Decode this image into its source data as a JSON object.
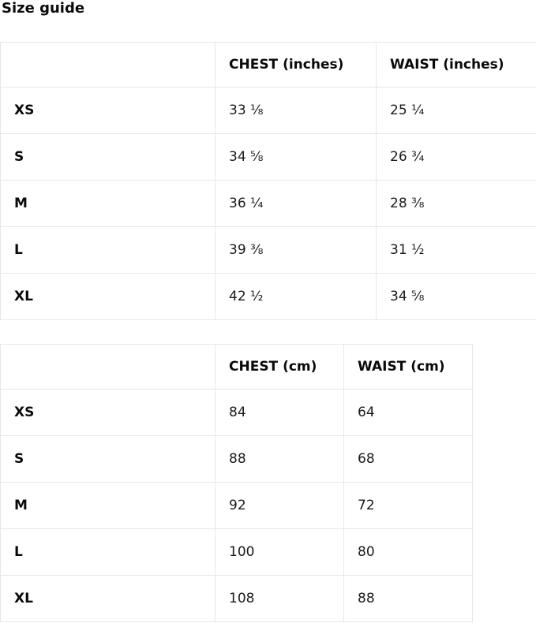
{
  "page": {
    "title": "Size guide"
  },
  "colors": {
    "border": "#e7e7e7",
    "text": "#111111",
    "background": "#ffffff"
  },
  "tables": [
    {
      "unit": "inches",
      "header": [
        "",
        "CHEST (inches)",
        "WAIST (inches)"
      ],
      "rows": [
        {
          "size": "XS",
          "chest": "33 ⅛",
          "waist": "25 ¼"
        },
        {
          "size": "S",
          "chest": "34 ⅝",
          "waist": "26 ¾"
        },
        {
          "size": "M",
          "chest": "36 ¼",
          "waist": "28 ⅜"
        },
        {
          "size": "L",
          "chest": "39 ⅜",
          "waist": "31 ½"
        },
        {
          "size": "XL",
          "chest": "42 ½",
          "waist": "34 ⅝"
        }
      ]
    },
    {
      "unit": "cm",
      "header": [
        "",
        "CHEST (cm)",
        "WAIST (cm)"
      ],
      "rows": [
        {
          "size": "XS",
          "chest": "84",
          "waist": "64"
        },
        {
          "size": "S",
          "chest": "88",
          "waist": "68"
        },
        {
          "size": "M",
          "chest": "92",
          "waist": "72"
        },
        {
          "size": "L",
          "chest": "100",
          "waist": "80"
        },
        {
          "size": "XL",
          "chest": "108",
          "waist": "88"
        }
      ]
    }
  ]
}
